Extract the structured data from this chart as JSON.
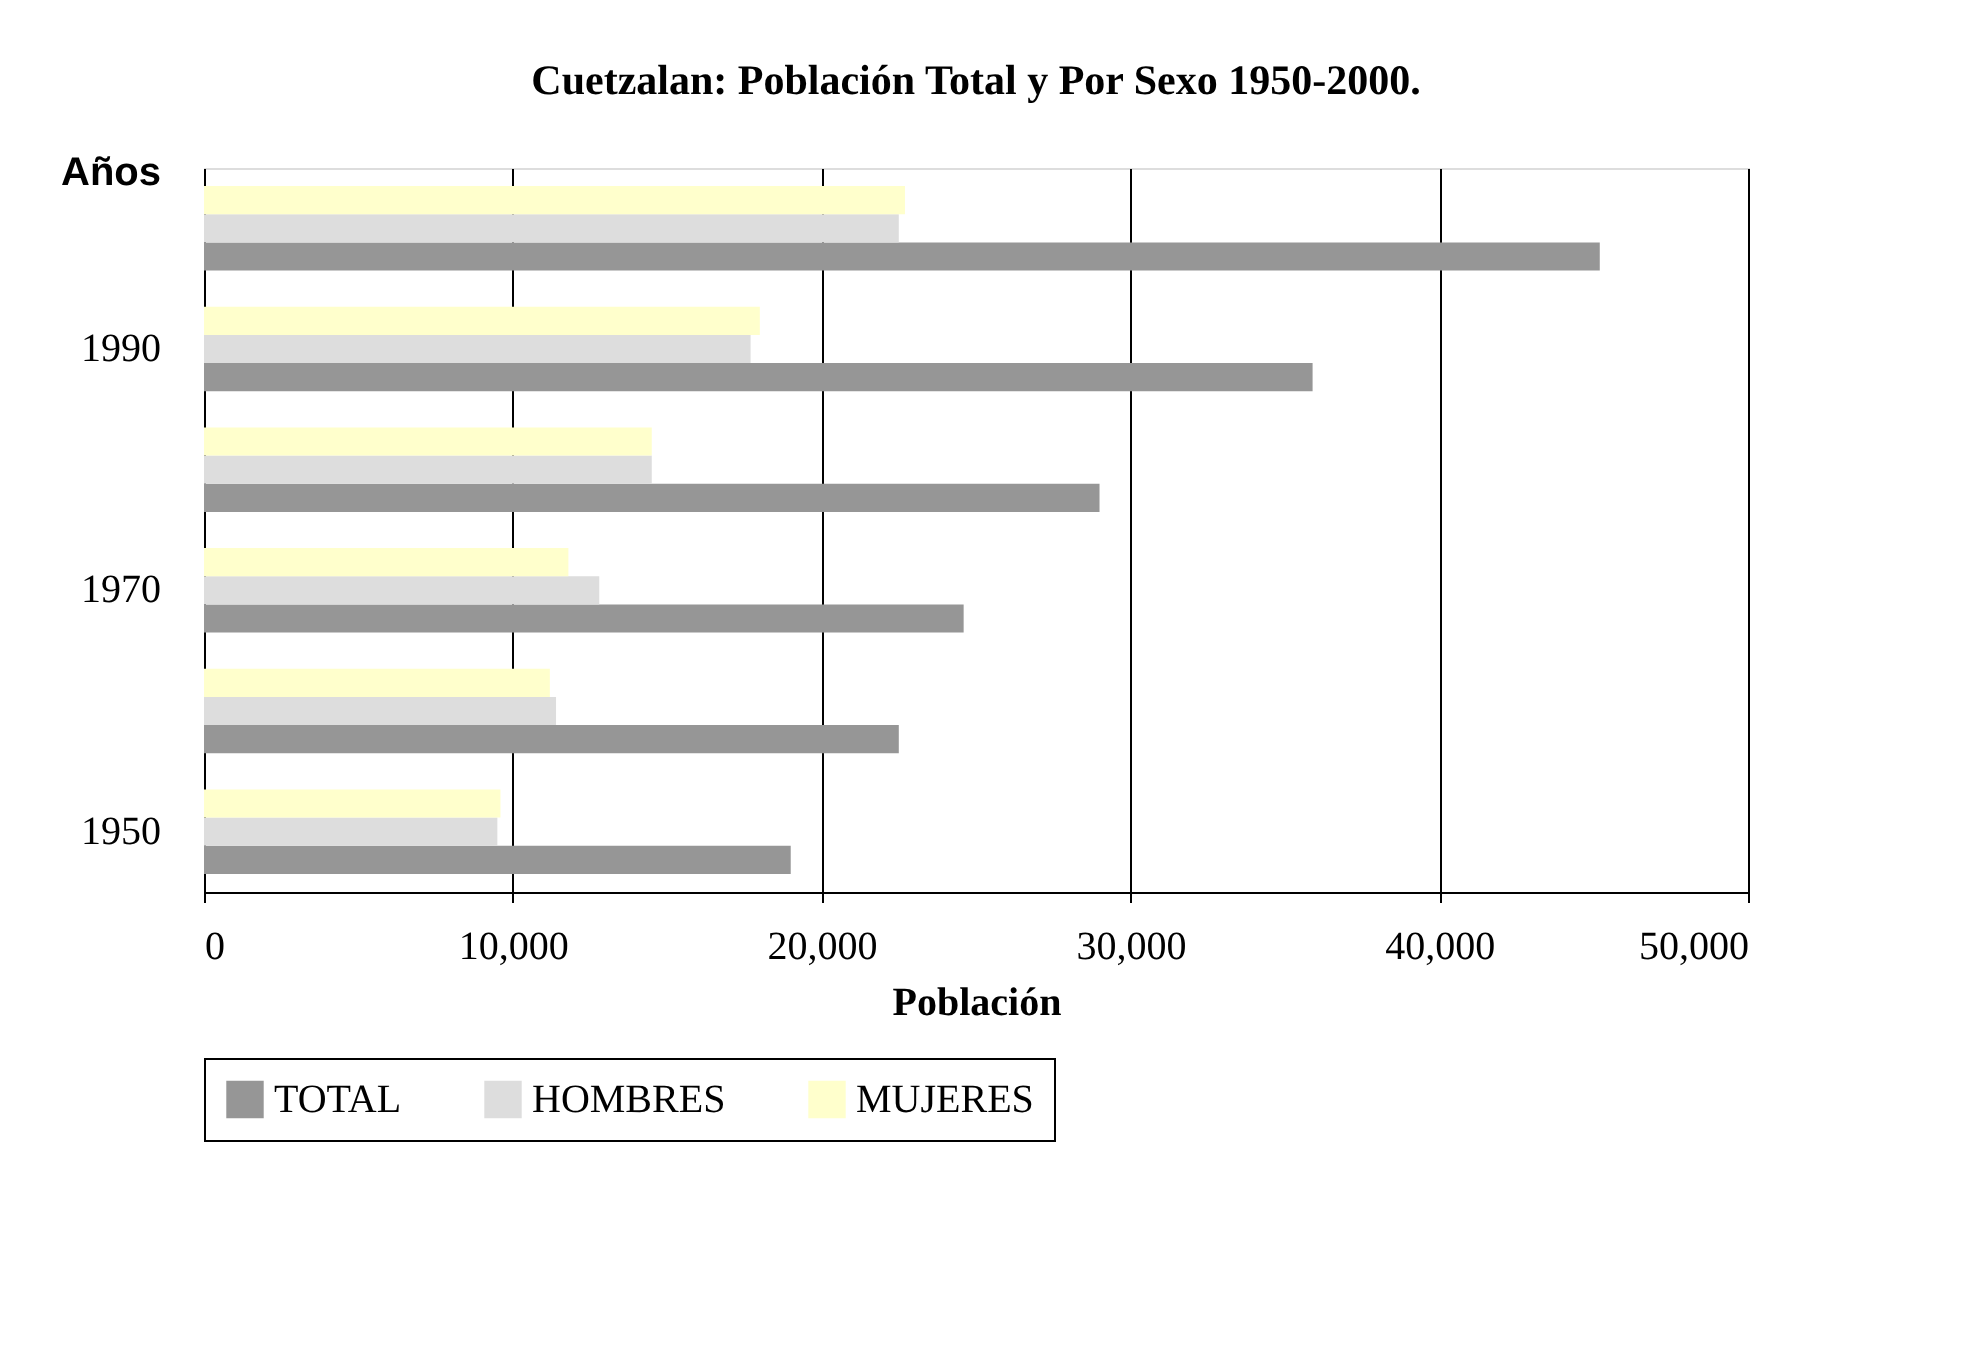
{
  "chart_data": {
    "type": "bar",
    "orientation": "horizontal",
    "title": "Cuetzalan: Población Total y Por Sexo 1950-2000.",
    "xlabel": "Población",
    "ylabel": "Años",
    "categories": [
      null,
      "1990",
      null,
      "1970",
      null,
      "1950"
    ],
    "series": [
      {
        "name": "TOTAL",
        "color": "#969696",
        "values": [
          45200,
          35900,
          29000,
          24600,
          22500,
          19000
        ]
      },
      {
        "name": "HOMBRES",
        "color": "#dddddd",
        "values": [
          22500,
          17700,
          14500,
          12800,
          11400,
          9500
        ]
      },
      {
        "name": "MUJERES",
        "color": "#ffffcc",
        "values": [
          22700,
          18000,
          14500,
          11800,
          11200,
          9600
        ]
      }
    ],
    "xlim": [
      0,
      50000
    ],
    "xticks": [
      {
        "value": 0,
        "label": "0"
      },
      {
        "value": 10000,
        "label": "10,000"
      },
      {
        "value": 20000,
        "label": "20,000"
      },
      {
        "value": 30000,
        "label": "30,000"
      },
      {
        "value": 40000,
        "label": "40,000"
      },
      {
        "value": 50000,
        "label": "50,000"
      }
    ],
    "grid": "x",
    "legend": "bottom"
  }
}
